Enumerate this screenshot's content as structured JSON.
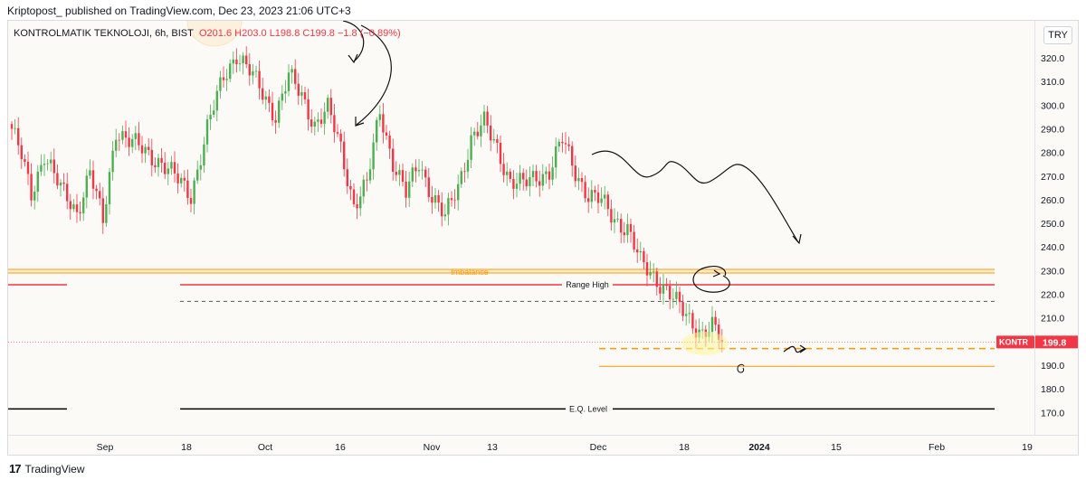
{
  "header": {
    "publisher": "Kriptopost_ published on TradingView.com, Dec 23, 2023 21:06 UTC+3"
  },
  "legend": {
    "symbol": "KONTROLMATIK TEKNOLOJI, 6h, BIST",
    "o": "O201.6",
    "h": "H203.0",
    "l": "L198.8",
    "c": "C199.8",
    "chg": "−1.8 (−0.89%)"
  },
  "currency_button": "TRY",
  "footer": {
    "brand": "TradingView",
    "logo": "17"
  },
  "colors": {
    "up": "#4caf50",
    "down": "#f23645",
    "imbalance": "#ff9800",
    "range_high": "#f23645",
    "eq": "#000000"
  },
  "chart_data": {
    "type": "candlestick",
    "symbol": "KONTR",
    "timeframe": "6h",
    "last_price": 199.8,
    "last_label": "199.8",
    "y_ticks": [
      320.0,
      310.0,
      300.0,
      290.0,
      280.0,
      270.0,
      260.0,
      250.0,
      240.0,
      230.0,
      220.0,
      210.0,
      190.0,
      180.0,
      170.0
    ],
    "y_tick_labels": [
      "320.0",
      "310.0",
      "300.0",
      "290.0",
      "280.0",
      "270.0",
      "260.0",
      "250.0",
      "240.0",
      "230.0",
      "220.0",
      "210.0",
      "190.0",
      "180.0",
      "170.0"
    ],
    "ylim": [
      165.0,
      330.0
    ],
    "x_ticks": [
      "Sep",
      "18",
      "Oct",
      "16",
      "Nov",
      "13",
      "Dec",
      "18",
      "2024",
      "15",
      "Feb",
      "19"
    ],
    "annotations": {
      "imbalance": {
        "label": "Imbalance",
        "low": 229.0,
        "high": 230.5
      },
      "range_high": {
        "label": "Range High",
        "price": 224.0
      },
      "mid_dashed": {
        "price": 217.0
      },
      "target_dashed": {
        "price": 197.0
      },
      "lower_line": {
        "price": 189.5
      },
      "eq_level": {
        "label": "E.Q. Level",
        "price": 171.5
      }
    },
    "anchors": [
      {
        "t": 0,
        "p": 290
      },
      {
        "t": 3,
        "p": 278
      },
      {
        "t": 6,
        "p": 262
      },
      {
        "t": 10,
        "p": 280
      },
      {
        "t": 15,
        "p": 264
      },
      {
        "t": 20,
        "p": 255
      },
      {
        "t": 24,
        "p": 272
      },
      {
        "t": 28,
        "p": 250
      },
      {
        "t": 32,
        "p": 290
      },
      {
        "t": 36,
        "p": 285
      },
      {
        "t": 41,
        "p": 280
      },
      {
        "t": 46,
        "p": 276
      },
      {
        "t": 51,
        "p": 268
      },
      {
        "t": 55,
        "p": 262
      },
      {
        "t": 60,
        "p": 290
      },
      {
        "t": 65,
        "p": 312
      },
      {
        "t": 69,
        "p": 322
      },
      {
        "t": 73,
        "p": 314
      },
      {
        "t": 77,
        "p": 305
      },
      {
        "t": 81,
        "p": 296
      },
      {
        "t": 85,
        "p": 312
      },
      {
        "t": 89,
        "p": 304
      },
      {
        "t": 93,
        "p": 292
      },
      {
        "t": 97,
        "p": 298
      },
      {
        "t": 101,
        "p": 282
      },
      {
        "t": 105,
        "p": 258
      },
      {
        "t": 109,
        "p": 266
      },
      {
        "t": 113,
        "p": 298
      },
      {
        "t": 117,
        "p": 276
      },
      {
        "t": 121,
        "p": 262
      },
      {
        "t": 125,
        "p": 276
      },
      {
        "t": 129,
        "p": 262
      },
      {
        "t": 133,
        "p": 252
      },
      {
        "t": 137,
        "p": 266
      },
      {
        "t": 141,
        "p": 286
      },
      {
        "t": 145,
        "p": 292
      },
      {
        "t": 149,
        "p": 282
      },
      {
        "t": 153,
        "p": 268
      },
      {
        "t": 157,
        "p": 266
      },
      {
        "t": 161,
        "p": 270
      },
      {
        "t": 165,
        "p": 272
      },
      {
        "t": 169,
        "p": 285
      },
      {
        "t": 173,
        "p": 272
      },
      {
        "t": 177,
        "p": 262
      },
      {
        "t": 181,
        "p": 259
      },
      {
        "t": 185,
        "p": 252
      },
      {
        "t": 189,
        "p": 248
      },
      {
        "t": 193,
        "p": 233
      },
      {
        "t": 197,
        "p": 228
      },
      {
        "t": 201,
        "p": 222
      },
      {
        "t": 205,
        "p": 214
      },
      {
        "t": 209,
        "p": 208
      },
      {
        "t": 212,
        "p": 204
      },
      {
        "t": 215,
        "p": 206
      },
      {
        "t": 218,
        "p": 199.8
      }
    ]
  }
}
